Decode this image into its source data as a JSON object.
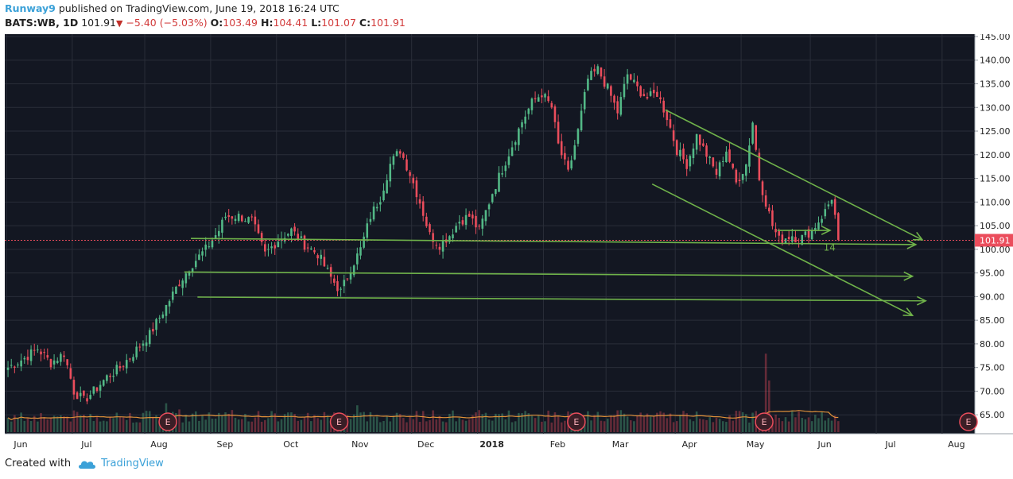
{
  "header": {
    "author": "Runway9",
    "published_text": "published on TradingView.com, June 19, 2018 16:24 UTC",
    "symbol": "BATS:WB, 1D",
    "last": "101.91",
    "change": "−5.40 (−5.03%)",
    "o_label": "O:",
    "o": "103.49",
    "h_label": "H:",
    "h": "104.41",
    "l_label": "L:",
    "l": "101.07",
    "c_label": "C:",
    "c": "101.91",
    "down_icon": "triangle-down-icon"
  },
  "footer": {
    "created_with": "Created with",
    "brand": "TradingView",
    "icon": "tradingview-cloud-icon"
  },
  "colors": {
    "background": "#131722",
    "grid": "#2a2e39",
    "up": "#53b987",
    "down": "#eb4d5c",
    "annotation": "#6fb24a",
    "price_line": "#eb4d5c",
    "axis_text": "#222222",
    "ma": "#e0913a"
  },
  "chart_data": {
    "type": "candlestick",
    "title": "BATS:WB, 1D",
    "price_axis": {
      "min": 61,
      "max": 145.5,
      "ticks": [
        145,
        140,
        135,
        130,
        125,
        120,
        115,
        110,
        105,
        100,
        95,
        90,
        85,
        80,
        75,
        70,
        65
      ],
      "tick_labels": [
        "145.00",
        "140.00",
        "135.00",
        "130.00",
        "125.00",
        "120.00",
        "115.00",
        "110.00",
        "105.00",
        "100.00",
        "95.00",
        "90.00",
        "85.00",
        "80.00",
        "75.00",
        "70.00",
        "65.00"
      ]
    },
    "time_axis": {
      "labels": [
        "Jun",
        "Jul",
        "Aug",
        "Sep",
        "Oct",
        "Nov",
        "Dec",
        "2018",
        "Feb",
        "Mar",
        "Apr",
        "May",
        "Jun",
        "Jul",
        "Aug"
      ],
      "label_index": [
        0,
        20,
        42,
        62,
        82,
        103,
        123,
        143,
        163,
        182,
        203,
        223,
        244,
        264,
        284
      ],
      "total_slots": 292
    },
    "last_price": 101.91,
    "last_price_label": "101.91",
    "anchors": [
      [
        0,
        75
      ],
      [
        5,
        77
      ],
      [
        9,
        79
      ],
      [
        13,
        76
      ],
      [
        17,
        78
      ],
      [
        20,
        70
      ],
      [
        23,
        68
      ],
      [
        26,
        70
      ],
      [
        30,
        73
      ],
      [
        34,
        75
      ],
      [
        38,
        78
      ],
      [
        43,
        82
      ],
      [
        48,
        88
      ],
      [
        52,
        93
      ],
      [
        56,
        97
      ],
      [
        60,
        100
      ],
      [
        64,
        104
      ],
      [
        66,
        107
      ],
      [
        70,
        107
      ],
      [
        74,
        106
      ],
      [
        78,
        99
      ],
      [
        82,
        102
      ],
      [
        86,
        104
      ],
      [
        90,
        101
      ],
      [
        94,
        99
      ],
      [
        98,
        94
      ],
      [
        101,
        91
      ],
      [
        104,
        96
      ],
      [
        107,
        100
      ],
      [
        110,
        107
      ],
      [
        113,
        111
      ],
      [
        116,
        118
      ],
      [
        119,
        121
      ],
      [
        122,
        116
      ],
      [
        125,
        110
      ],
      [
        128,
        103
      ],
      [
        131,
        101
      ],
      [
        134,
        103
      ],
      [
        137,
        106
      ],
      [
        140,
        107
      ],
      [
        143,
        104
      ],
      [
        147,
        112
      ],
      [
        150,
        117
      ],
      [
        153,
        122
      ],
      [
        156,
        127
      ],
      [
        159,
        131
      ],
      [
        162,
        133
      ],
      [
        165,
        130
      ],
      [
        167,
        122
      ],
      [
        170,
        116
      ],
      [
        173,
        125
      ],
      [
        176,
        136
      ],
      [
        179,
        138
      ],
      [
        182,
        134
      ],
      [
        185,
        129
      ],
      [
        188,
        137
      ],
      [
        191,
        134
      ],
      [
        194,
        132
      ],
      [
        197,
        133
      ],
      [
        200,
        128
      ],
      [
        203,
        121
      ],
      [
        206,
        118
      ],
      [
        209,
        124
      ],
      [
        212,
        120
      ],
      [
        215,
        116
      ],
      [
        218,
        121
      ],
      [
        221,
        114
      ],
      [
        224,
        118
      ],
      [
        226,
        127
      ],
      [
        228,
        115
      ],
      [
        230,
        110
      ],
      [
        232,
        105
      ],
      [
        234,
        102
      ],
      [
        236,
        102.5
      ],
      [
        238,
        103
      ],
      [
        240,
        102
      ],
      [
        242,
        103
      ],
      [
        244,
        104
      ],
      [
        246,
        106
      ],
      [
        248,
        108
      ],
      [
        250,
        111
      ],
      [
        251,
        107
      ],
      [
        252,
        102
      ]
    ],
    "volume": {
      "ma_label": "volume MA",
      "spikes": [
        [
          48,
          14
        ],
        [
          52,
          11
        ],
        [
          97,
          8
        ],
        [
          106,
          13
        ],
        [
          174,
          8
        ],
        [
          230,
          38
        ],
        [
          231,
          25
        ]
      ]
    },
    "earnings_events": [
      {
        "label": "E",
        "index": 49
      },
      {
        "label": "E",
        "index": 101
      },
      {
        "label": "E",
        "index": 173
      },
      {
        "label": "E",
        "index": 230
      },
      {
        "label": "E",
        "index": 292
      }
    ],
    "drawings": {
      "horizontal_support": [
        {
          "from": [
            56,
            102.3
          ],
          "to": [
            276,
            101
          ]
        },
        {
          "from": [
            54,
            95.2
          ],
          "to": [
            275,
            94.3
          ]
        },
        {
          "from": [
            58,
            89.9
          ],
          "to": [
            279,
            89.1
          ]
        }
      ],
      "channel_upper": {
        "from": [
          200,
          129.5
        ],
        "to": [
          278,
          102
        ]
      },
      "channel_lower": {
        "from": [
          196,
          113.8
        ],
        "to": [
          275,
          86
        ]
      },
      "small_arrow": {
        "from": [
          234,
          104
        ],
        "to": [
          250,
          104
        ]
      },
      "annotation_text": "14",
      "annotation_at": [
        248,
        99.7
      ]
    }
  }
}
